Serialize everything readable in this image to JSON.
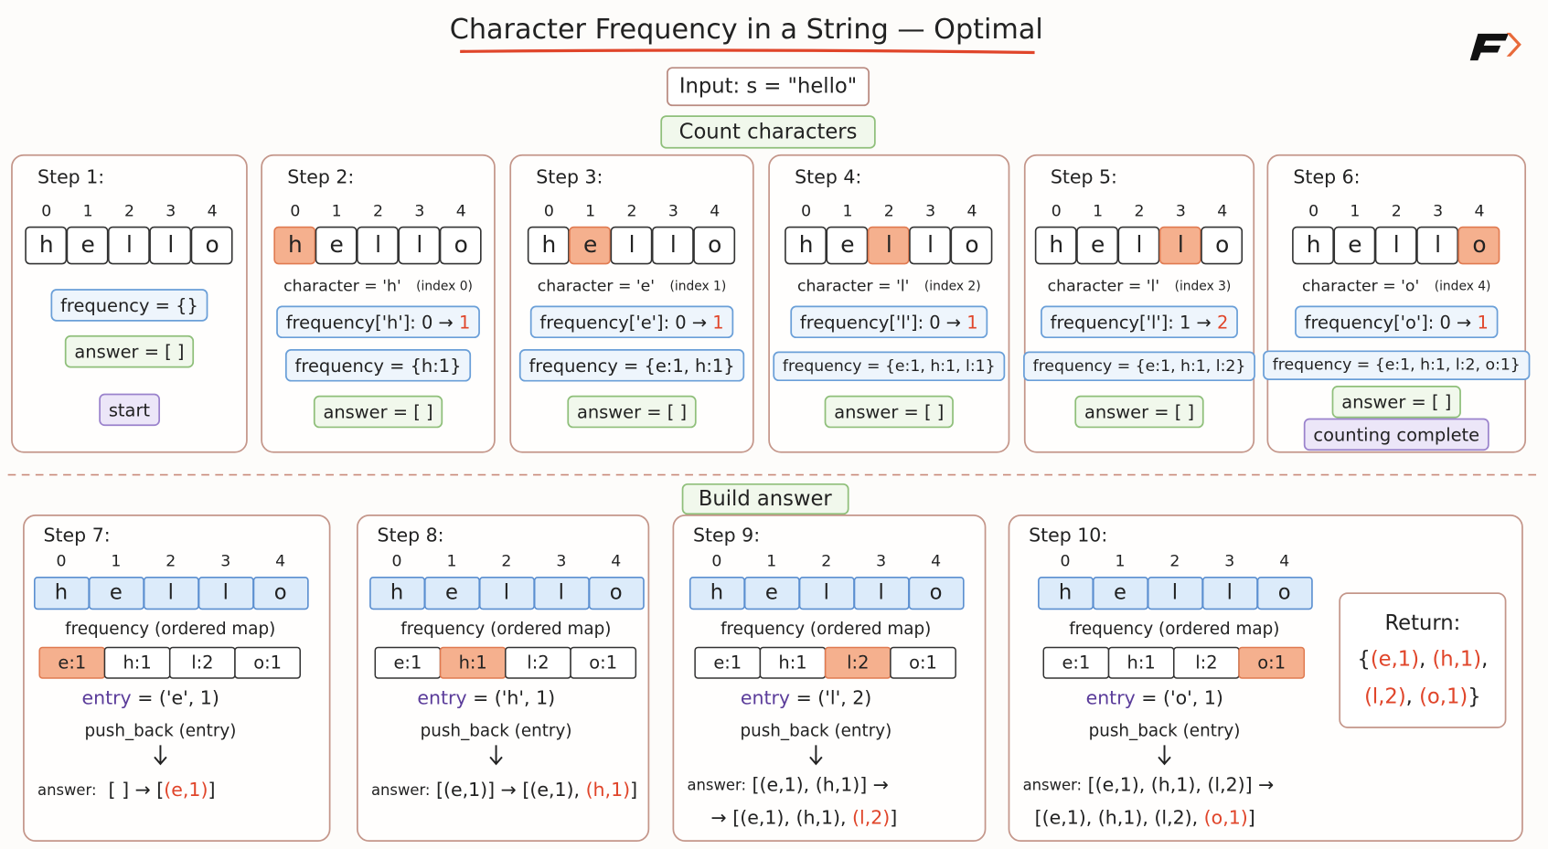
{
  "title": "Character Frequency in a String — Optimal",
  "input": "Input: s = \"hello\"",
  "count_heading": "Count characters",
  "build_heading": "Build answer",
  "indices": [
    "0",
    "1",
    "2",
    "3",
    "4"
  ],
  "chars": [
    "h",
    "e",
    "l",
    "l",
    "o"
  ],
  "map_entries": [
    "e:1",
    "h:1",
    "l:2",
    "o:1"
  ],
  "count_steps": [
    {
      "label": "Step 1:",
      "highlight": null,
      "lines": [
        {
          "box": "blue",
          "parts": [
            {
              "t": "frequency = {}"
            }
          ]
        },
        {
          "box": "green",
          "parts": [
            {
              "t": "answer = [ ]"
            }
          ]
        },
        {
          "box": "purple",
          "parts": [
            {
              "t": "start"
            }
          ]
        }
      ]
    },
    {
      "label": "Step 2:",
      "highlight": 0,
      "lines": [
        {
          "box": "none",
          "parts": [
            {
              "t": "character = 'h'   "
            },
            {
              "t": "(index 0)",
              "c": "small"
            }
          ]
        },
        {
          "box": "blue",
          "parts": [
            {
              "t": "frequency['h']: 0 → "
            },
            {
              "t": "1",
              "c": "red"
            }
          ]
        },
        {
          "box": "blue",
          "parts": [
            {
              "t": "frequency = {h:1}"
            }
          ]
        },
        {
          "box": "green",
          "parts": [
            {
              "t": "answer = [ ]"
            }
          ]
        }
      ]
    },
    {
      "label": "Step 3:",
      "highlight": 1,
      "lines": [
        {
          "box": "none",
          "parts": [
            {
              "t": "character = 'e'   "
            },
            {
              "t": "(index 1)",
              "c": "small"
            }
          ]
        },
        {
          "box": "blue",
          "parts": [
            {
              "t": "frequency['e']: 0 → "
            },
            {
              "t": "1",
              "c": "red"
            }
          ]
        },
        {
          "box": "blue",
          "parts": [
            {
              "t": "frequency = {e:1, h:1}"
            }
          ]
        },
        {
          "box": "green",
          "parts": [
            {
              "t": "answer = [ ]"
            }
          ]
        }
      ]
    },
    {
      "label": "Step 4:",
      "highlight": 2,
      "lines": [
        {
          "box": "none",
          "parts": [
            {
              "t": "character = 'l'   "
            },
            {
              "t": "(index 2)",
              "c": "small"
            }
          ]
        },
        {
          "box": "blue",
          "parts": [
            {
              "t": "frequency['l']: 0 → "
            },
            {
              "t": "1",
              "c": "red"
            }
          ]
        },
        {
          "box": "blue",
          "parts": [
            {
              "t": "frequency = {e:1, h:1, l:1}"
            }
          ]
        },
        {
          "box": "green",
          "parts": [
            {
              "t": "answer = [ ]"
            }
          ]
        }
      ]
    },
    {
      "label": "Step 5:",
      "highlight": 3,
      "lines": [
        {
          "box": "none",
          "parts": [
            {
              "t": "character = 'l'   "
            },
            {
              "t": "(index 3)",
              "c": "small"
            }
          ]
        },
        {
          "box": "blue",
          "parts": [
            {
              "t": "frequency['l']: 1 → "
            },
            {
              "t": "2",
              "c": "red"
            }
          ]
        },
        {
          "box": "blue",
          "parts": [
            {
              "t": "frequency = {e:1, h:1, l:2}"
            }
          ]
        },
        {
          "box": "green",
          "parts": [
            {
              "t": "answer = [ ]"
            }
          ]
        }
      ]
    },
    {
      "label": "Step 6:",
      "highlight": 4,
      "lines": [
        {
          "box": "none",
          "parts": [
            {
              "t": "character = 'o'   "
            },
            {
              "t": "(index 4)",
              "c": "small"
            }
          ]
        },
        {
          "box": "blue",
          "parts": [
            {
              "t": "frequency['o']: 0 → "
            },
            {
              "t": "1",
              "c": "red"
            }
          ]
        },
        {
          "box": "blue",
          "parts": [
            {
              "t": "frequency = {e:1, h:1, l:2, o:1}"
            }
          ]
        },
        {
          "box": "green",
          "parts": [
            {
              "t": "answer = [ ]"
            }
          ]
        },
        {
          "box": "purple",
          "parts": [
            {
              "t": "counting complete"
            }
          ]
        }
      ]
    }
  ],
  "build_steps": [
    {
      "label": "Step 7:",
      "highlight": 0,
      "map_label": "frequency (ordered map)",
      "entry": [
        {
          "t": "entry",
          "c": "purple"
        },
        {
          "t": " = ('e', 1)"
        }
      ],
      "call": "push_back (entry)",
      "answer": [
        [
          {
            "t": "answer:",
            "c": "small"
          },
          {
            "t": "  [ ] → ["
          },
          {
            "t": "(e,1)",
            "c": "red"
          },
          {
            "t": "]"
          }
        ]
      ]
    },
    {
      "label": "Step 8:",
      "highlight": 1,
      "map_label": "frequency (ordered map)",
      "entry": [
        {
          "t": "entry",
          "c": "purple"
        },
        {
          "t": " = ('h', 1)"
        }
      ],
      "call": "push_back (entry)",
      "answer": [
        [
          {
            "t": "answer:",
            "c": "small"
          },
          {
            "t": " [(e,1)] → [(e,1), "
          },
          {
            "t": "(h,1)",
            "c": "red"
          },
          {
            "t": "]"
          }
        ]
      ]
    },
    {
      "label": "Step 9:",
      "highlight": 2,
      "map_label": "frequency (ordered map)",
      "entry": [
        {
          "t": "entry",
          "c": "purple"
        },
        {
          "t": " = ('l', 2)"
        }
      ],
      "call": "push_back (entry)",
      "answer": [
        [
          {
            "t": "answer:",
            "c": "small"
          },
          {
            "t": " [(e,1), (h,1)] →"
          }
        ],
        [
          {
            "t": "    → [(e,1), (h,1), "
          },
          {
            "t": "(l,2)",
            "c": "red"
          },
          {
            "t": "]"
          }
        ]
      ]
    },
    {
      "label": "Step 10:",
      "highlight": 3,
      "map_label": "frequency (ordered map)",
      "entry": [
        {
          "t": "entry",
          "c": "purple"
        },
        {
          "t": " = ('o', 1)"
        }
      ],
      "call": "push_back (entry)",
      "answer": [
        [
          {
            "t": "answer:",
            "c": "small"
          },
          {
            "t": " [(e,1), (h,1), (l,2)] →"
          }
        ],
        [
          {
            "t": "  [(e,1), (h,1), (l,2), "
          },
          {
            "t": "(o,1)",
            "c": "red"
          },
          {
            "t": "]"
          }
        ]
      ]
    }
  ],
  "return": {
    "label": "Return:",
    "lines": [
      [
        {
          "t": "{"
        },
        {
          "t": "(e,1)",
          "c": "red"
        },
        {
          "t": ", "
        },
        {
          "t": "(h,1)",
          "c": "red"
        },
        {
          "t": ","
        }
      ],
      [
        {
          "t": "(l,2)",
          "c": "red"
        },
        {
          "t": ", "
        },
        {
          "t": "(o,1)",
          "c": "red"
        },
        {
          "t": "}"
        }
      ]
    ]
  }
}
